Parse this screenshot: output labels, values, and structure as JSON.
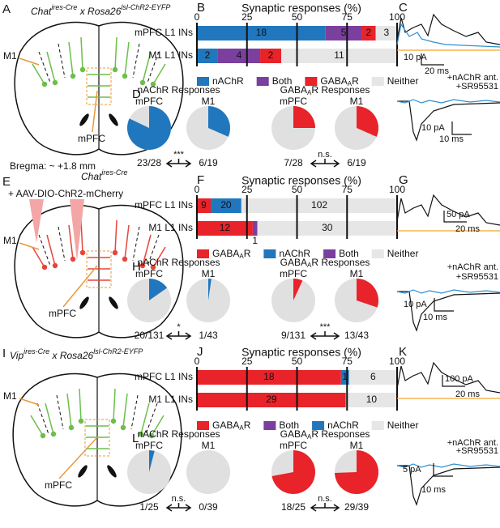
{
  "panel_letters": [
    "A",
    "B",
    "C",
    "D",
    "E",
    "F",
    "G",
    "H",
    "I",
    "J",
    "K",
    "L"
  ],
  "schematics": [
    {
      "genotype": [
        "Chat",
        "ires-Cre",
        " x Rosa26",
        "lsl-ChR2-EYFP"
      ],
      "region_a": "M1",
      "region_b": "mPFC",
      "bregma": "Bregma: ~ +1.8 mm"
    },
    {
      "genotype": [
        "Chat",
        "ires-Cre"
      ],
      "virus": "+ AAV-DIO-ChR2-mCherry",
      "region_a": "M1",
      "region_b": "mPFC"
    },
    {
      "genotype": [
        "Vip",
        "ires-Cre",
        " x Rosa26",
        "lsl-ChR2-EYFP"
      ],
      "region_a": "M1",
      "region_b": "mPFC"
    }
  ],
  "chart_data": [
    {
      "type": "bar",
      "orientation": "horizontal",
      "title": "Synaptic responses (%)",
      "categories": [
        "mPFC L1 INs",
        "M1 L1 INs"
      ],
      "xlim": [
        0,
        100
      ],
      "xticks": [
        0,
        25,
        50,
        75,
        100
      ],
      "series": [
        {
          "name": "nAChR",
          "color": "#2177bd",
          "values": [
            64.3,
            10.5
          ],
          "counts": [
            18,
            2
          ]
        },
        {
          "name": "Both",
          "color": "#7b3f9e",
          "values": [
            17.9,
            21.1
          ],
          "counts": [
            5,
            4
          ]
        },
        {
          "name": "GABAAR",
          "color": "#e8232a",
          "values": [
            7.1,
            10.5
          ],
          "counts": [
            2,
            2
          ]
        },
        {
          "name": "Neither",
          "color": "#e6e6e6",
          "values": [
            10.7,
            57.9
          ],
          "counts": [
            3,
            11
          ]
        }
      ]
    },
    {
      "type": "bar",
      "orientation": "horizontal",
      "title": "Synaptic responses (%)",
      "categories": [
        "mPFC L1 INs",
        "M1 L1 INs"
      ],
      "xlim": [
        0,
        100
      ],
      "xticks": [
        0,
        25,
        50,
        75,
        100
      ],
      "series": [
        {
          "name": "GABAAR",
          "color": "#e8232a",
          "values": [
            6.9,
            27.9
          ],
          "counts": [
            9,
            12
          ]
        },
        {
          "name": "nAChR",
          "color": "#2177bd",
          "values": [
            15.3,
            null
          ],
          "counts": [
            20,
            null
          ]
        },
        {
          "name": "Both",
          "color": "#7b3f9e",
          "values": [
            null,
            2.3
          ],
          "counts": [
            null,
            1
          ]
        },
        {
          "name": "Neither",
          "color": "#e6e6e6",
          "values": [
            77.9,
            69.8
          ],
          "counts": [
            102,
            30
          ]
        }
      ]
    },
    {
      "type": "bar",
      "orientation": "horizontal",
      "title": "Synaptic responses (%)",
      "categories": [
        "mPFC L1 INs",
        "M1 L1 INs"
      ],
      "xlim": [
        0,
        100
      ],
      "xticks": [
        0,
        25,
        50,
        75,
        100
      ],
      "series": [
        {
          "name": "GABAAR",
          "color": "#e8232a",
          "values": [
            72,
            74.4
          ],
          "counts": [
            18,
            29
          ]
        },
        {
          "name": "Both",
          "color": "#7b3f9e",
          "values": [
            null,
            null
          ],
          "counts": [
            null,
            null
          ]
        },
        {
          "name": "nAChR",
          "color": "#2177bd",
          "values": [
            4,
            null
          ],
          "counts": [
            1,
            null
          ]
        },
        {
          "name": "Neither",
          "color": "#e6e6e6",
          "values": [
            24,
            25.6
          ],
          "counts": [
            6,
            10
          ]
        }
      ]
    },
    {
      "type": "pie",
      "title": "nAChR Responses",
      "categories": [
        "mPFC",
        "M1"
      ],
      "values": [
        82.1,
        31.6
      ],
      "value_labels": [
        "23/28",
        "6/19"
      ],
      "color": "#2177bd",
      "significance": "***"
    },
    {
      "type": "pie",
      "title": "GABAAR Responses",
      "categories": [
        "mPFC",
        "M1"
      ],
      "values": [
        25,
        31.6
      ],
      "value_labels": [
        "7/28",
        "6/19"
      ],
      "color": "#e8232a",
      "significance": "n.s."
    },
    {
      "type": "pie",
      "title": "nAChR Responses",
      "categories": [
        "mPFC",
        "M1"
      ],
      "values": [
        15.3,
        2.3
      ],
      "value_labels": [
        "20/131",
        "1/43"
      ],
      "color": "#2177bd",
      "significance": "*"
    },
    {
      "type": "pie",
      "title": "GABAAR Responses",
      "categories": [
        "mPFC",
        "M1"
      ],
      "values": [
        6.9,
        30.2
      ],
      "value_labels": [
        "9/131",
        "13/43"
      ],
      "color": "#e8232a",
      "significance": "***"
    },
    {
      "type": "pie",
      "title": "nAChR Responses",
      "categories": [
        "mPFC",
        "M1"
      ],
      "values": [
        4,
        0
      ],
      "value_labels": [
        "1/25",
        "0/39"
      ],
      "color": "#2177bd",
      "significance": "n.s."
    },
    {
      "type": "pie",
      "title": "GABAAR Responses",
      "categories": [
        "mPFC",
        "M1"
      ],
      "values": [
        72,
        74.4
      ],
      "value_labels": [
        "18/25",
        "29/39"
      ],
      "color": "#e8232a",
      "significance": "n.s."
    }
  ],
  "traces": [
    {
      "top_amp": "10 pA",
      "top_time": "20 ms",
      "blockers": [
        "+nAChR ant.",
        "+SR95531"
      ],
      "blocker_colors": [
        "#2e8fd0",
        "#f5a52a"
      ],
      "bottom_amp": "10 pA",
      "bottom_time": "10 ms"
    },
    {
      "top_amp": "50 pA",
      "top_time": "20 ms",
      "blockers": [
        "+nAChR ant.",
        "+SR95531"
      ],
      "blocker_colors": [
        "#2e8fd0",
        "#f5a52a"
      ],
      "bottom_amp": "10 pA",
      "bottom_time": "10 ms"
    },
    {
      "top_amp": "100 pA",
      "top_time": "20 ms",
      "blockers": [
        "+nAChR ant.",
        "+SR95531"
      ],
      "blocker_colors": [
        "#2e8fd0",
        "#f5a52a"
      ],
      "bottom_amp": "5 pA",
      "bottom_time": "10 ms"
    }
  ]
}
